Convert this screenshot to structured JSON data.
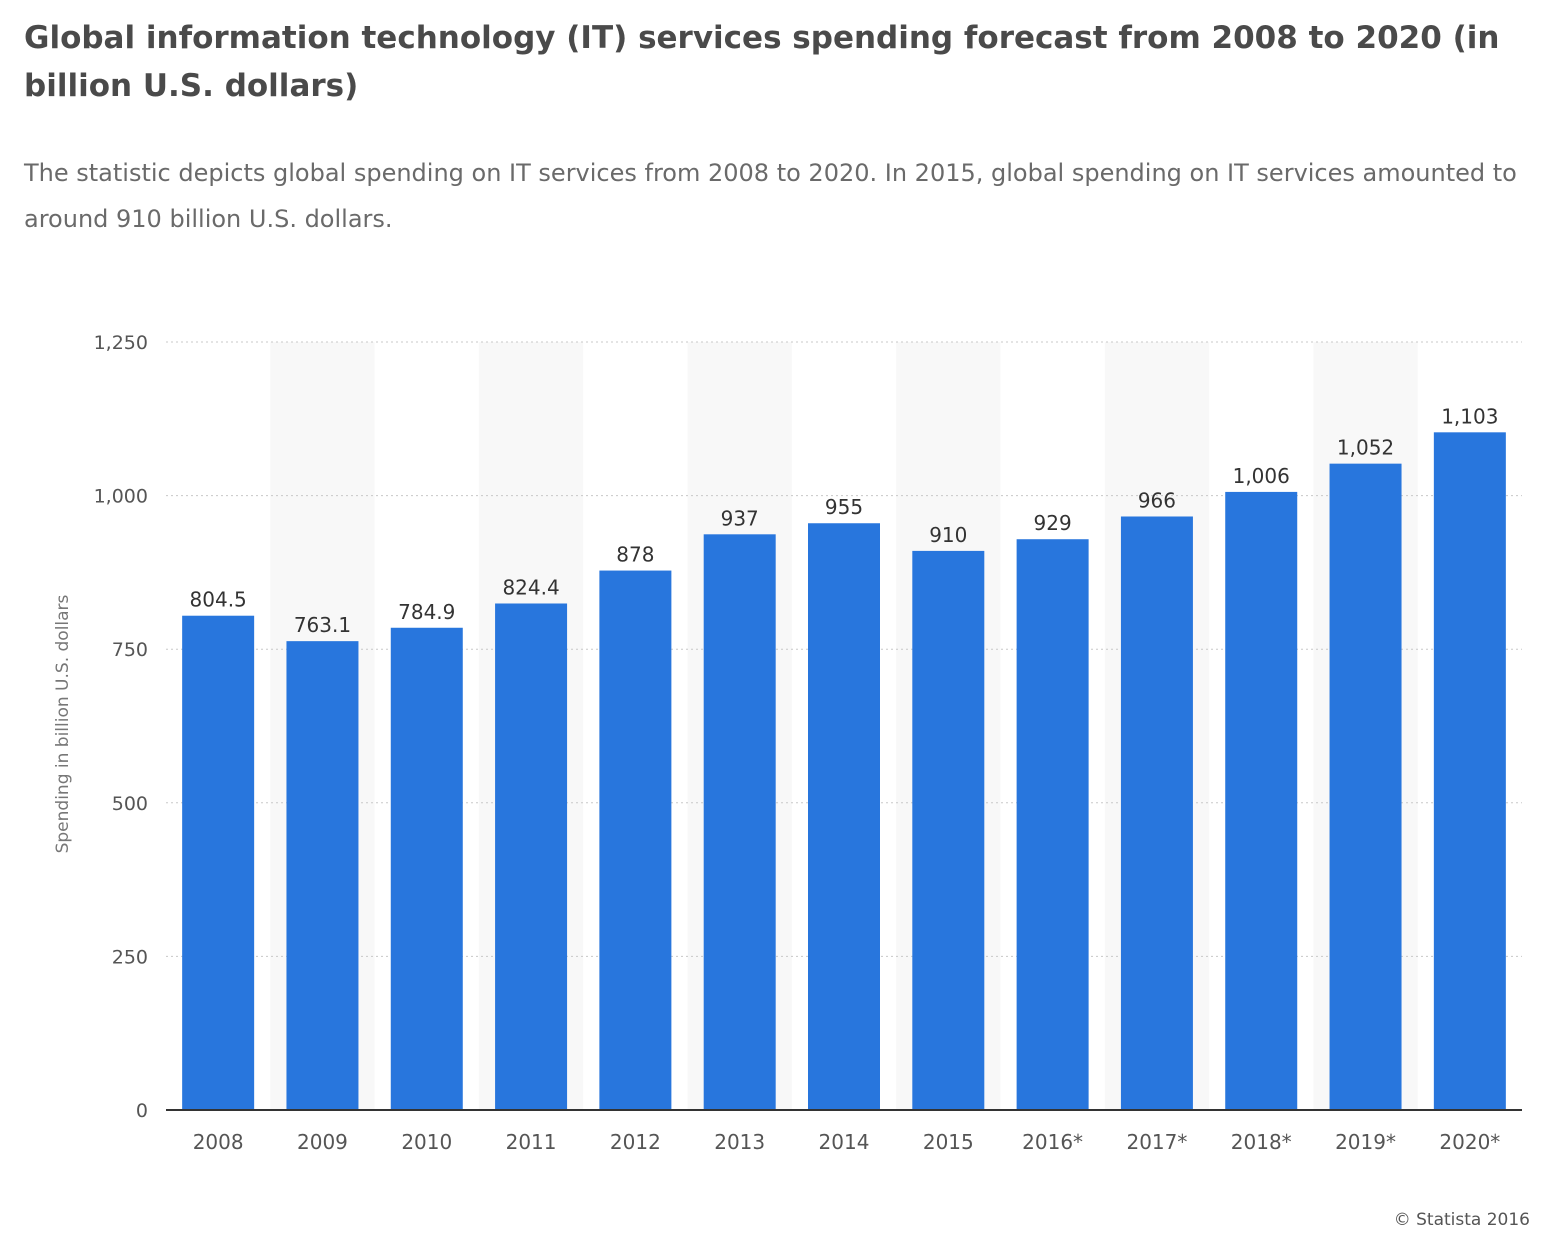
{
  "header": {
    "title": "Global information technology (IT) services spending forecast from 2008 to 2020 (in billion U.S. dollars)",
    "subtitle": "The statistic depicts global spending on IT services from 2008 to 2020. In 2015, global spending on IT services amounted to around 910 billion U.S. dollars."
  },
  "footer": {
    "copyright": "© Statista 2016"
  },
  "chart_data": {
    "type": "bar",
    "categories": [
      "2008",
      "2009",
      "2010",
      "2011",
      "2012",
      "2013",
      "2014",
      "2015",
      "2016*",
      "2017*",
      "2018*",
      "2019*",
      "2020*"
    ],
    "values": [
      804.5,
      763.1,
      784.9,
      824.4,
      878,
      937,
      955,
      910,
      929,
      966,
      1006,
      1052,
      1103
    ],
    "value_labels": [
      "804.5",
      "763.1",
      "784.9",
      "824.4",
      "878",
      "937",
      "955",
      "910",
      "929",
      "966",
      "1,006",
      "1,052",
      "1,103"
    ],
    "ylabel": "Spending in billion U.S. dollars",
    "ylim": [
      0,
      1250
    ],
    "yticks": [
      0,
      250,
      500,
      750,
      1000,
      1250
    ],
    "ytick_labels": [
      "0",
      "250",
      "500",
      "750",
      "1,000",
      "1,250"
    ],
    "grid": true,
    "colors": {
      "bar": "#2876dd",
      "band": "#f8f8f8",
      "grid": "#c8c8c8",
      "axis": "#333333"
    }
  }
}
